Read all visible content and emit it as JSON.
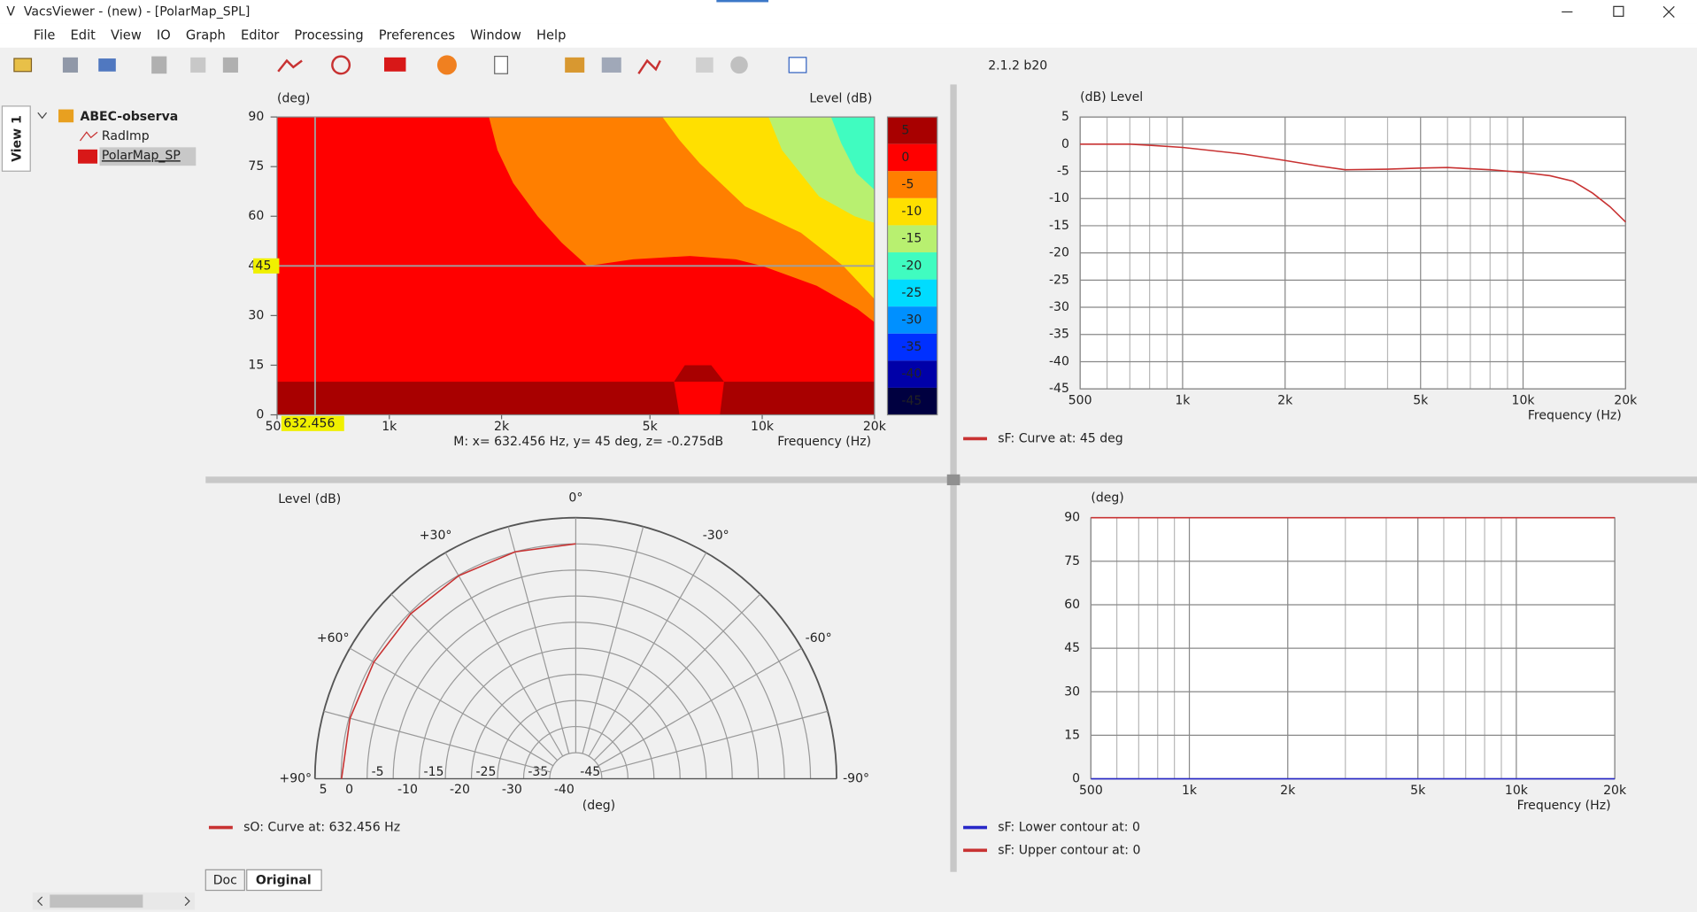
{
  "window": {
    "title": "VacsViewer - (new) - [PolarMap_SPL]",
    "version": "2.1.2 b20"
  },
  "menu": [
    "File",
    "Edit",
    "View",
    "IO",
    "Graph",
    "Editor",
    "Processing",
    "Preferences",
    "Window",
    "Help"
  ],
  "sidebar": {
    "tab": "View 1",
    "root": "ABEC-observa",
    "items": [
      "RadImp",
      "PolarMap_SP"
    ]
  },
  "tabs": [
    "Doc",
    "Original"
  ],
  "chart_data": [
    {
      "type": "contour",
      "y_label": "(deg)",
      "z_label": "Level  (dB)",
      "x_label": "Frequency  (Hz)",
      "readout": "M:  x= 632.456 Hz,  y= 45 deg, z= -0.275dB",
      "log_x": true,
      "xlim": [
        500,
        20000
      ],
      "xticks": [
        500,
        {
          "value": 1000,
          "label": "1k"
        },
        {
          "value": 2000,
          "label": "2k"
        },
        {
          "value": 5000,
          "label": "5k"
        },
        {
          "value": 10000,
          "label": "10k"
        },
        {
          "value": 20000,
          "label": "20k"
        }
      ],
      "ylim": [
        0,
        90
      ],
      "yticks": [
        0,
        15,
        30,
        45,
        60,
        75,
        90
      ],
      "zlim": [
        -47.5,
        7.5
      ],
      "zticks": [
        5,
        0,
        -5,
        -10,
        -15,
        -20,
        -25,
        -30,
        -35,
        -40,
        -45
      ],
      "colorbar_colors": [
        "#a80000",
        "#ff0000",
        "#ff7f00",
        "#ffe000",
        "#b8f070",
        "#40fcc0",
        "#00dcff",
        "#0090ff",
        "#0030ff",
        "#0000a8",
        "#000040"
      ],
      "color": "#ff0000",
      "cursor": {
        "x": 632.456,
        "y": 45,
        "x_label": "632.456",
        "y_label": "45"
      },
      "regions": [
        {
          "color": "#a80000",
          "x": [
            500,
            20000,
            20000,
            7900,
            7300,
            6200,
            5800,
            500
          ],
          "y": [
            0,
            0,
            10,
            10,
            15,
            15,
            10,
            10
          ]
        },
        {
          "color": "#ff0000",
          "x": [
            5800,
            7900,
            7700,
            6000
          ],
          "y": [
            10,
            10,
            0,
            0
          ]
        },
        {
          "color": "#ff7f00",
          "x": [
            1850,
            1950,
            2150,
            2500,
            2900,
            3400,
            4500,
            6400,
            8500,
            10000,
            14000,
            18000,
            20000,
            20000
          ],
          "y": [
            90,
            80,
            70,
            60,
            52,
            45,
            47,
            48,
            47,
            45,
            39,
            32,
            28,
            90
          ]
        },
        {
          "color": "#ffe000",
          "x": [
            5400,
            6000,
            6800,
            9000,
            12700,
            16500,
            20000,
            20000
          ],
          "y": [
            90,
            83,
            76,
            63,
            55,
            45,
            35,
            90
          ]
        },
        {
          "color": "#b8f070",
          "x": [
            10400,
            11300,
            14200,
            17700,
            20000,
            20000
          ],
          "y": [
            90,
            80,
            66,
            60,
            58,
            90
          ]
        },
        {
          "color": "#40fcc0",
          "x": [
            15300,
            16300,
            17900,
            20000,
            20000
          ],
          "y": [
            90,
            82,
            73,
            68,
            90
          ]
        }
      ]
    },
    {
      "type": "line",
      "y_label": "(dB)  Level",
      "x_label": "Frequency  (Hz)",
      "grid": true,
      "log_x": true,
      "xlim": [
        500,
        20000
      ],
      "xticks": [
        500,
        {
          "value": 1000,
          "label": "1k"
        },
        {
          "value": 2000,
          "label": "2k"
        },
        {
          "value": 5000,
          "label": "5k"
        },
        {
          "value": 10000,
          "label": "10k"
        },
        {
          "value": 20000,
          "label": "20k"
        }
      ],
      "minor_xticks": [
        600,
        700,
        800,
        900,
        3000,
        4000,
        6000,
        7000,
        8000,
        9000
      ],
      "ylim": [
        -45,
        5
      ],
      "yticks": [
        5,
        0,
        -5,
        -10,
        -15,
        -20,
        -25,
        -30,
        -35,
        -40,
        -45
      ],
      "series": [
        {
          "name": "sF: Curve at: 45 deg",
          "color": "#c83232",
          "x": [
            500,
            600,
            700,
            800,
            1000,
            1500,
            2000,
            2500,
            3000,
            4000,
            5000,
            6000,
            8000,
            10000,
            12000,
            14000,
            16000,
            18000,
            20000
          ],
          "values": [
            0,
            0,
            0,
            -0.2,
            -0.6,
            -1.8,
            -3,
            -4,
            -4.7,
            -4.6,
            -4.4,
            -4.3,
            -4.7,
            -5.2,
            -5.8,
            -6.8,
            -9,
            -11.5,
            -14.3
          ]
        }
      ]
    },
    {
      "type": "polar",
      "y_label": "Level  (dB)",
      "x_label": "(deg)",
      "rlim": [
        -45,
        5
      ],
      "rticks": [
        5,
        0,
        -5,
        -10,
        -15,
        -20,
        -25,
        -30,
        -35,
        -40,
        -45
      ],
      "angle_grid": [
        -90,
        -75,
        -60,
        -45,
        -30,
        -15,
        0,
        15,
        30,
        45,
        60,
        75,
        90
      ],
      "angle_ticks": [
        {
          "value": 0,
          "label": "0°"
        },
        {
          "value": 30,
          "label": "+30°"
        },
        {
          "value": -30,
          "label": "-30°"
        },
        {
          "value": 60,
          "label": "+60°"
        },
        {
          "value": -60,
          "label": "-60°"
        },
        {
          "value": 90,
          "label": "+90°"
        },
        {
          "value": -90,
          "label": "-90°"
        }
      ],
      "series": [
        {
          "name": "sO: Curve at: 632.456 Hz",
          "color": "#c83232",
          "x": [
            0,
            15,
            30,
            45,
            60,
            75,
            90
          ],
          "values": [
            0,
            0,
            -0.1,
            -0.275,
            -0.3,
            -0.2,
            -0.1
          ]
        }
      ]
    },
    {
      "type": "line",
      "y_label": "(deg)",
      "x_label": "Frequency  (Hz)",
      "grid": true,
      "log_x": true,
      "xlim": [
        500,
        20000
      ],
      "xticks": [
        500,
        {
          "value": 1000,
          "label": "1k"
        },
        {
          "value": 2000,
          "label": "2k"
        },
        {
          "value": 5000,
          "label": "5k"
        },
        {
          "value": 10000,
          "label": "10k"
        },
        {
          "value": 20000,
          "label": "20k"
        }
      ],
      "minor_xticks": [
        600,
        700,
        800,
        900,
        3000,
        4000,
        6000,
        7000,
        8000,
        9000
      ],
      "ylim": [
        0,
        90
      ],
      "yticks": [
        0,
        15,
        30,
        45,
        60,
        75,
        90
      ],
      "series": [
        {
          "name": "sF: Lower contour at: 0",
          "color": "#2828c8",
          "x": [
            500,
            20000
          ],
          "values": [
            0,
            0
          ]
        },
        {
          "name": "sF: Upper contour at: 0",
          "color": "#c83232",
          "x": [
            500,
            20000
          ],
          "values": [
            90,
            90
          ]
        }
      ]
    }
  ]
}
